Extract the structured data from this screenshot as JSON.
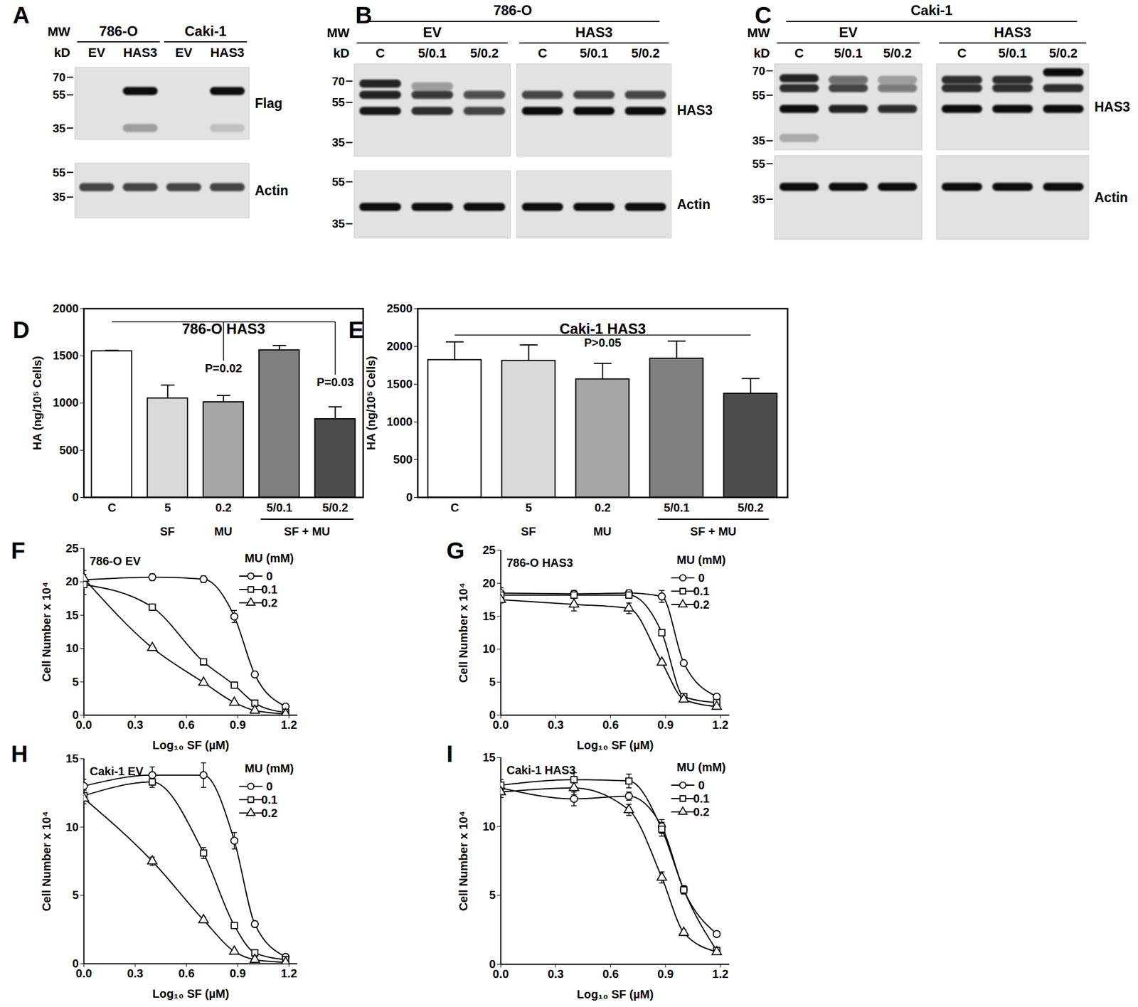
{
  "blots": [
    {
      "panel": "A",
      "mw_title": [
        "MW",
        "kD"
      ],
      "groups": [
        {
          "label": "786-O",
          "lanes": [
            "EV",
            "HAS3"
          ]
        },
        {
          "label": "Caki-1",
          "lanes": [
            "EV",
            "HAS3"
          ]
        }
      ],
      "membranes": [
        {
          "label": "Flag",
          "mw_lim": [
            80,
            30
          ],
          "mw_ticks": [
            70,
            55,
            35
          ],
          "bands": [
            [],
            [
              [
                58,
                1
              ],
              [
                35,
                0.3
              ]
            ],
            [],
            [
              [
                58,
                1
              ],
              [
                35,
                0.15
              ]
            ]
          ]
        },
        {
          "label": "Actin",
          "mw_lim": [
            65,
            24
          ],
          "mw_ticks": [
            55,
            35
          ],
          "bands": [
            [
              [
                42,
                0.75
              ]
            ],
            [
              [
                42,
                0.75
              ]
            ],
            [
              [
                42,
                0.75
              ]
            ],
            [
              [
                42,
                0.75
              ]
            ]
          ]
        }
      ]
    },
    {
      "panel": "B",
      "header": "786-O",
      "mw_title": [
        "MW",
        "kD"
      ],
      "groups": [
        {
          "label": "EV",
          "lanes": [
            "C",
            "5/0.1",
            "5/0.2"
          ]
        },
        {
          "label": "HAS3",
          "lanes": [
            "C",
            "5/0.1",
            "5/0.2"
          ]
        }
      ],
      "membranes": [
        {
          "label": "HAS3",
          "mw_lim": [
            85,
            30
          ],
          "mw_ticks": [
            70,
            55,
            35
          ],
          "bands": [
            [
              [
                68,
                0.9
              ],
              [
                60,
                0.9
              ],
              [
                50,
                0.95
              ]
            ],
            [
              [
                66,
                0.35
              ],
              [
                60,
                0.8
              ],
              [
                50,
                0.85
              ]
            ],
            [
              [
                60,
                0.7
              ],
              [
                50,
                0.75
              ]
            ],
            [
              [
                60,
                0.75
              ],
              [
                50,
                1
              ]
            ],
            [
              [
                60,
                0.75
              ],
              [
                50,
                1
              ]
            ],
            [
              [
                60,
                0.75
              ],
              [
                50,
                1
              ]
            ]
          ]
        },
        {
          "label": "Actin",
          "mw_lim": [
            62,
            30
          ],
          "mw_ticks": [
            55,
            35
          ],
          "bands": [
            [
              [
                42,
                1
              ]
            ],
            [
              [
                42,
                1
              ]
            ],
            [
              [
                42,
                1
              ]
            ],
            [
              [
                42,
                1
              ]
            ],
            [
              [
                42,
                1
              ]
            ],
            [
              [
                42,
                1
              ]
            ]
          ]
        }
      ]
    },
    {
      "panel": "C",
      "header": "Caki-1",
      "mw_title": [
        "MW",
        "kD"
      ],
      "groups": [
        {
          "label": "EV",
          "lanes": [
            "C",
            "5/0.1",
            "5/0.2"
          ]
        },
        {
          "label": "HAS3",
          "lanes": [
            "C",
            "5/0.1",
            "5/0.2"
          ]
        }
      ],
      "membranes": [
        {
          "label": "HAS3",
          "mw_lim": [
            75,
            32
          ],
          "mw_ticks": [
            70,
            55,
            35
          ],
          "bands": [
            [
              [
                65,
                0.9
              ],
              [
                59,
                0.85
              ],
              [
                48,
                1
              ],
              [
                36,
                0.25
              ]
            ],
            [
              [
                64,
                0.55
              ],
              [
                59,
                0.75
              ],
              [
                48,
                0.9
              ]
            ],
            [
              [
                64,
                0.3
              ],
              [
                59,
                0.5
              ],
              [
                48,
                0.85
              ]
            ],
            [
              [
                64,
                0.85
              ],
              [
                59,
                0.85
              ],
              [
                48,
                1
              ]
            ],
            [
              [
                64,
                0.85
              ],
              [
                59,
                0.85
              ],
              [
                48,
                1
              ]
            ],
            [
              [
                69,
                1
              ],
              [
                59,
                0.85
              ],
              [
                48,
                1
              ]
            ]
          ]
        },
        {
          "label": "Actin",
          "mw_lim": [
            61,
            21
          ],
          "mw_ticks": [
            55,
            35
          ],
          "bands": [
            [
              [
                41,
                1
              ]
            ],
            [
              [
                41,
                1
              ]
            ],
            [
              [
                41,
                1
              ]
            ],
            [
              [
                41,
                1
              ]
            ],
            [
              [
                41,
                1
              ]
            ],
            [
              [
                41,
                1
              ]
            ]
          ]
        }
      ]
    }
  ],
  "chart_data": [
    {
      "panel": "D",
      "type": "bar",
      "title": "786-O HAS3",
      "categories": [
        "C",
        "5",
        "0.2",
        "5/0.1",
        "5/0.2"
      ],
      "category_groups": [
        {
          "label": "SF",
          "categories": [
            "5"
          ]
        },
        {
          "label": "MU",
          "categories": [
            "0.2"
          ]
        },
        {
          "label": "SF + MU",
          "categories": [
            "5/0.1",
            "5/0.2"
          ]
        }
      ],
      "values": [
        1550,
        1050,
        1010,
        1560,
        830
      ],
      "errors": [
        8,
        140,
        70,
        50,
        130
      ],
      "colors": [
        "#ffffff",
        "#d9d9d9",
        "#a6a6a6",
        "#7f7f7f",
        "#4d4d4d"
      ],
      "ylabel": "HA (ng/10⁵ Cells)",
      "ylim": [
        0,
        2000
      ],
      "yticks": [
        0,
        500,
        1000,
        1500,
        2000
      ],
      "comparison": {
        "y": 1860,
        "from": "C",
        "to": "5/0.2",
        "drops": [
          {
            "at": "0.2",
            "to": 1450,
            "label": "P=0.02"
          },
          {
            "at": "5/0.2",
            "to": 1300,
            "label": "P=0.03"
          }
        ]
      }
    },
    {
      "panel": "E",
      "type": "bar",
      "title": "Caki-1 HAS3",
      "categories": [
        "C",
        "5",
        "0.2",
        "5/0.1",
        "5/0.2"
      ],
      "category_groups": [
        {
          "label": "SF",
          "categories": [
            "5"
          ]
        },
        {
          "label": "MU",
          "categories": [
            "0.2"
          ]
        },
        {
          "label": "SF + MU",
          "categories": [
            "5/0.1",
            "5/0.2"
          ]
        }
      ],
      "values": [
        1820,
        1810,
        1565,
        1840,
        1375
      ],
      "errors": [
        240,
        210,
        210,
        230,
        200
      ],
      "colors": [
        "#ffffff",
        "#d9d9d9",
        "#a6a6a6",
        "#7f7f7f",
        "#4d4d4d"
      ],
      "ylabel": "HA (ng/10⁵ Cells)",
      "ylim": [
        0,
        2500
      ],
      "yticks": [
        0,
        500,
        1000,
        1500,
        2000,
        2500
      ],
      "comparison": {
        "y": 2150,
        "from": "C",
        "to": "5/0.2",
        "label": "P>0.05"
      }
    },
    {
      "panel": "F",
      "type": "line",
      "title": "786-O EV",
      "x": [
        0,
        0.4,
        0.7,
        0.88,
        1,
        1.18
      ],
      "xlabel": "Log₁₀ SF (µM)",
      "ylabel": "Cell Number x 10⁴",
      "xlim": [
        0,
        1.25
      ],
      "xticks": [
        {
          "value": 0,
          "label": "0.0"
        },
        0.3,
        0.6,
        0.9,
        1.2
      ],
      "ylim": [
        0,
        25
      ],
      "yticks": [
        0,
        5,
        10,
        15,
        20,
        25
      ],
      "legend": "top-right",
      "legend_title": "MU (mM)",
      "series": [
        {
          "name": "0",
          "color": "#000000",
          "marker": "circle",
          "values": [
            20.3,
            20.7,
            20.4,
            14.8,
            6.1,
            1.3
          ],
          "errors": [
            0.8,
            0.5,
            0.5,
            0.9,
            0.3,
            0.2
          ]
        },
        {
          "name": "0.1",
          "color": "#000000",
          "marker": "square",
          "values": [
            19.6,
            16.2,
            8.0,
            4.5,
            1.8,
            0.4
          ],
          "errors": [
            1.5,
            0.3,
            0.3,
            0.3,
            0.2,
            0.1
          ]
        },
        {
          "name": "0.2",
          "color": "#000000",
          "marker": "triangle",
          "values": [
            20.5,
            10.1,
            4.9,
            1.9,
            0.7,
            0.2
          ],
          "errors": [
            1.2,
            0.3,
            0.2,
            0.2,
            0.1,
            0.1
          ]
        }
      ]
    },
    {
      "panel": "G",
      "type": "line",
      "title": "786-O HAS3",
      "x": [
        0,
        0.4,
        0.7,
        0.88,
        1,
        1.18
      ],
      "xlabel": "Log₁₀ SF (µM)",
      "ylabel": "Cell Number x 10⁴",
      "xlim": [
        0,
        1.25
      ],
      "xticks": [
        {
          "value": 0,
          "label": "0.0"
        },
        0.3,
        0.6,
        0.9,
        1.2
      ],
      "ylim": [
        0,
        25
      ],
      "yticks": [
        0,
        5,
        10,
        15,
        20,
        25
      ],
      "legend": "top-right",
      "legend_title": "MU (mM)",
      "series": [
        {
          "name": "0",
          "color": "#000000",
          "marker": "circle",
          "values": [
            18.5,
            18.4,
            18.5,
            18.0,
            7.9,
            2.8
          ],
          "errors": [
            0.8,
            0.5,
            0.5,
            0.9,
            0.3,
            0.2
          ]
        },
        {
          "name": "0.1",
          "color": "#000000",
          "marker": "square",
          "values": [
            18.2,
            18.2,
            18.2,
            12.5,
            2.8,
            1.9
          ],
          "errors": [
            0.5,
            0.4,
            0.4,
            0.3,
            0.2,
            0.1
          ]
        },
        {
          "name": "0.2",
          "color": "#000000",
          "marker": "triangle",
          "values": [
            17.5,
            16.8,
            16.2,
            8.0,
            2.4,
            1.3
          ],
          "errors": [
            0.5,
            1.0,
            0.8,
            0.3,
            0.2,
            0.1
          ]
        }
      ]
    },
    {
      "panel": "H",
      "type": "line",
      "title": "Caki-1 EV",
      "x": [
        0,
        0.4,
        0.7,
        0.88,
        1,
        1.18
      ],
      "xlabel": "Log₁₀ SF (µM)",
      "ylabel": "Cell Number x 10⁴",
      "xlim": [
        0,
        1.25
      ],
      "xticks": [
        {
          "value": 0,
          "label": "0.0"
        },
        0.3,
        0.6,
        0.9,
        1.2
      ],
      "ylim": [
        0,
        15
      ],
      "yticks": [
        0,
        5,
        10,
        15
      ],
      "legend": "top-right",
      "legend_title": "MU (mM)",
      "series": [
        {
          "name": "0",
          "color": "#000000",
          "marker": "circle",
          "values": [
            13.0,
            13.8,
            13.8,
            9.0,
            2.9,
            0.5
          ],
          "errors": [
            0.5,
            0.6,
            0.9,
            0.6,
            0.2,
            0.1
          ]
        },
        {
          "name": "0.1",
          "color": "#000000",
          "marker": "square",
          "values": [
            12.3,
            13.3,
            8.1,
            2.8,
            0.8,
            0.3
          ],
          "errors": [
            0.4,
            0.4,
            0.4,
            0.2,
            0.1,
            0.1
          ]
        },
        {
          "name": "0.2",
          "color": "#000000",
          "marker": "triangle",
          "values": [
            12.1,
            7.5,
            3.2,
            0.9,
            0.3,
            0.1
          ],
          "errors": [
            0.4,
            0.3,
            0.2,
            0.1,
            0.1,
            0.05
          ]
        }
      ]
    },
    {
      "panel": "I",
      "type": "line",
      "title": "Caki-1 HAS3",
      "x": [
        0,
        0.4,
        0.7,
        0.88,
        1,
        1.18
      ],
      "xlabel": "Log₁₀ SF (µM)",
      "ylabel": "Cell Number x 10⁴",
      "xlim": [
        0,
        1.25
      ],
      "xticks": [
        {
          "value": 0,
          "label": "0.0"
        },
        0.3,
        0.6,
        0.9,
        1.2
      ],
      "ylim": [
        0,
        15
      ],
      "yticks": [
        0,
        5,
        10,
        15
      ],
      "legend": "top-right",
      "legend_title": "MU (mM)",
      "series": [
        {
          "name": "0",
          "color": "#000000",
          "marker": "circle",
          "values": [
            12.8,
            12.0,
            12.2,
            10.0,
            5.4,
            2.2
          ],
          "errors": [
            0.4,
            0.5,
            0.3,
            0.5,
            0.3,
            0.2
          ]
        },
        {
          "name": "0.1",
          "color": "#000000",
          "marker": "square",
          "values": [
            13.0,
            13.4,
            13.3,
            9.8,
            5.4,
            1.0
          ],
          "errors": [
            0.4,
            0.5,
            0.5,
            0.5,
            0.3,
            0.1
          ]
        },
        {
          "name": "0.2",
          "color": "#000000",
          "marker": "triangle",
          "values": [
            12.5,
            12.8,
            11.2,
            6.3,
            2.3,
            0.9
          ],
          "errors": [
            0.4,
            0.5,
            0.4,
            0.4,
            0.2,
            0.1
          ]
        }
      ]
    }
  ]
}
